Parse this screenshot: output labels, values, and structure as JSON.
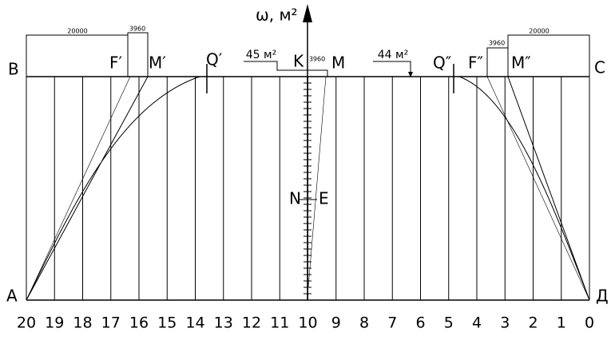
{
  "axis_label": "ω, м²",
  "points": {
    "B": "B",
    "C": "C",
    "A": "A",
    "D": "Д",
    "F1": "F′",
    "M1": "M′",
    "Q1": "Q′",
    "K": "K",
    "M": "M",
    "Q2": "Q″",
    "F2": "F″",
    "M2": "M″",
    "N": "N",
    "E": "E"
  },
  "volumes": {
    "left_total": "20000",
    "left_small": "3960",
    "center_left": "45 м²",
    "center_small": "3960",
    "center_right": "44 м²",
    "right_small": "3960",
    "right_total": "20000"
  },
  "stations": [
    20,
    19,
    18,
    17,
    16,
    15,
    14,
    13,
    12,
    11,
    10,
    9,
    8,
    7,
    6,
    5,
    4,
    3,
    2,
    1,
    0
  ]
}
